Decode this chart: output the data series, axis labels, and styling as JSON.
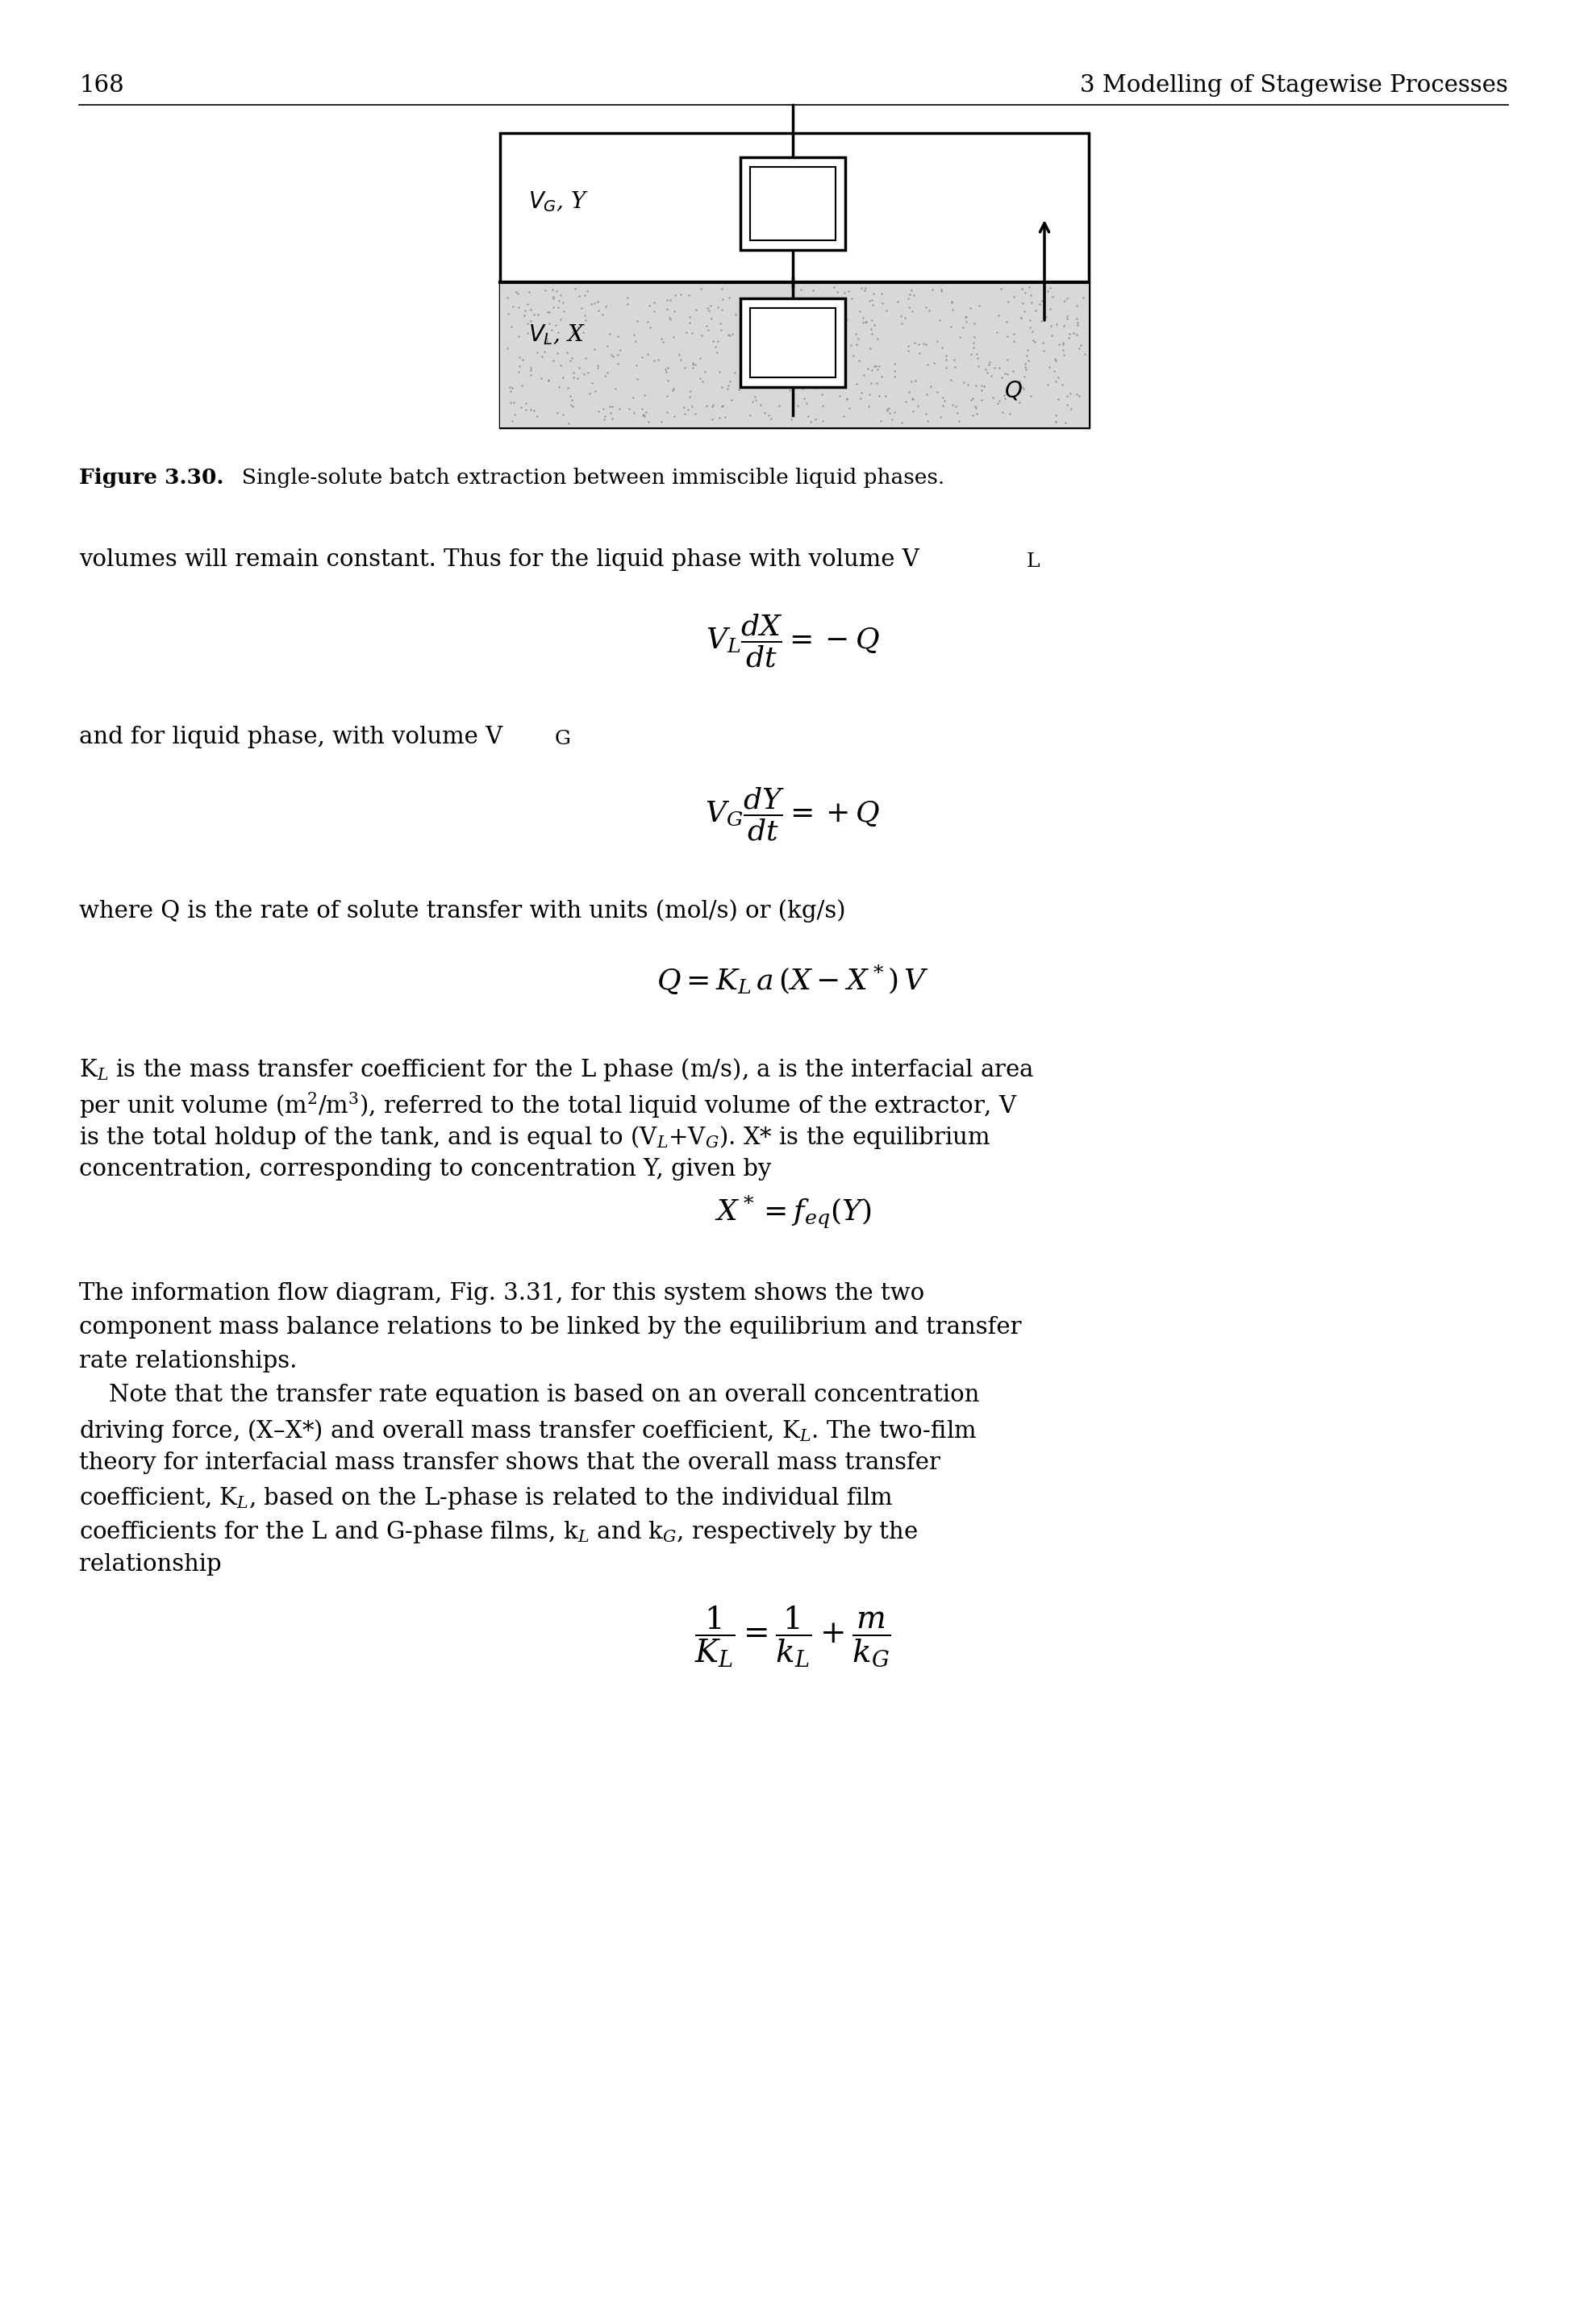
{
  "page_number": "168",
  "header_right": "3 Modelling of Stagewise Processes",
  "fig_caption": "Figure 3.30.  Single-solute batch extraction between immiscible liquid phases.",
  "para1": "volumes will remain constant. Thus for the liquid phase with volume V",
  "para1_sub": "L",
  "eq1": "$V_L \\dfrac{dX}{dt} = - Q$",
  "para2": "and for liquid phase, with volume V",
  "para2_sub": "G",
  "eq2": "$V_G \\dfrac{dY}{dt} = + Q$",
  "para3": "where Q is the rate of solute transfer with units (mol/s) or (kg/s)",
  "eq3": "$Q = K_L \\, a \\, (X - X^*) \\, V$",
  "para4_lines": [
    "K$_L$ is the mass transfer coefficient for the L phase (m/s), a is the interfacial area",
    "per unit volume (m$^2$/m$^3$), referred to the total liquid volume of the extractor, V",
    "is the total holdup of the tank, and is equal to (V$_L$+V$_G$). X* is the equilibrium",
    "concentration, corresponding to concentration Y, given by"
  ],
  "eq4": "$X^* = f_{eq}(Y)$",
  "para5_lines": [
    "The information flow diagram, Fig. 3.31, for this system shows the two",
    "component mass balance relations to be linked by the equilibrium and transfer",
    "rate relationships.",
    "    Note that the transfer rate equation is based on an overall concentration",
    "driving force, (X–X*) and overall mass transfer coefficient, K$_L$. The two-film",
    "theory for interfacial mass transfer shows that the overall mass transfer",
    "coefficient, K$_L$, based on the L-phase is related to the individual film",
    "coefficients for the L and G-phase films, k$_L$ and k$_G$, respectively by the",
    "relationship"
  ],
  "eq5": "$\\dfrac{1}{K_L} = \\dfrac{1}{k_L} + \\dfrac{m}{k_G}$",
  "bg_color": "#ffffff",
  "text_color": "#000000"
}
